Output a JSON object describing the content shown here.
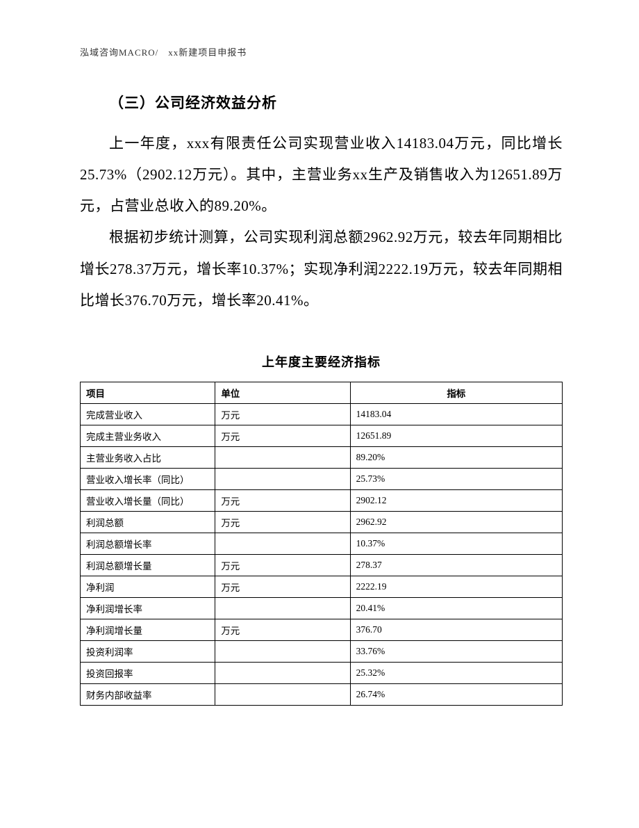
{
  "header": {
    "text": "泓域咨询MACRO/　xx新建项目申报书"
  },
  "section_heading": "（三）公司经济效益分析",
  "paragraph1": "上一年度，xxx有限责任公司实现营业收入14183.04万元，同比增长25.73%（2902.12万元）。其中，主营业务xx生产及销售收入为12651.89万元，占营业总收入的89.20%。",
  "paragraph2": "根据初步统计测算，公司实现利润总额2962.92万元，较去年同期相比增长278.37万元，增长率10.37%；实现净利润2222.19万元，较去年同期相比增长376.70万元，增长率20.41%。",
  "table": {
    "title": "上年度主要经济指标",
    "columns": [
      "项目",
      "单位",
      "指标"
    ],
    "rows": [
      {
        "item": "完成营业收入",
        "unit": "万元",
        "indicator": "14183.04"
      },
      {
        "item": "完成主营业务收入",
        "unit": "万元",
        "indicator": "12651.89"
      },
      {
        "item": "主营业务收入占比",
        "unit": "",
        "indicator": "89.20%"
      },
      {
        "item": "营业收入增长率（同比）",
        "unit": "",
        "indicator": "25.73%"
      },
      {
        "item": "营业收入增长量（同比）",
        "unit": "万元",
        "indicator": "2902.12"
      },
      {
        "item": "利润总额",
        "unit": "万元",
        "indicator": "2962.92"
      },
      {
        "item": "利润总额增长率",
        "unit": "",
        "indicator": "10.37%"
      },
      {
        "item": "利润总额增长量",
        "unit": "万元",
        "indicator": "278.37"
      },
      {
        "item": "净利润",
        "unit": "万元",
        "indicator": "2222.19"
      },
      {
        "item": "净利润增长率",
        "unit": "",
        "indicator": "20.41%"
      },
      {
        "item": "净利润增长量",
        "unit": "万元",
        "indicator": "376.70"
      },
      {
        "item": "投资利润率",
        "unit": "",
        "indicator": "33.76%"
      },
      {
        "item": "投资回报率",
        "unit": "",
        "indicator": "25.32%"
      },
      {
        "item": "财务内部收益率",
        "unit": "",
        "indicator": "26.74%"
      }
    ]
  }
}
